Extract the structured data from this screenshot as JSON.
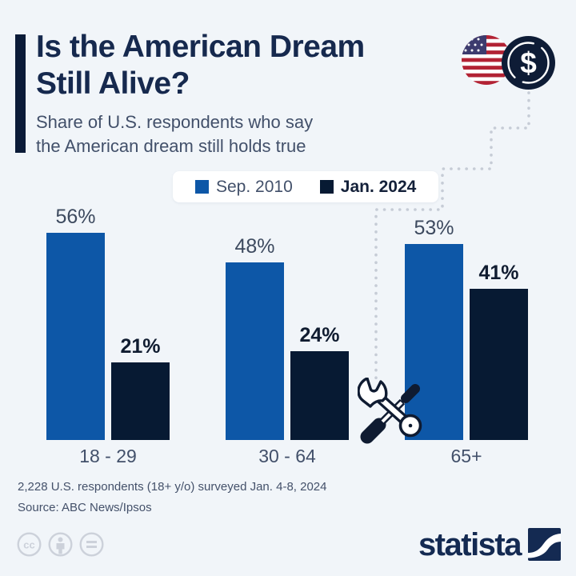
{
  "header": {
    "title_line1": "Is the American Dream",
    "title_line2": "Still Alive?",
    "subtitle_line1": "Share of U.S. respondents who say",
    "subtitle_line2": "the American dream still holds true",
    "coin_symbol": "$"
  },
  "chart_data": {
    "type": "bar",
    "categories": [
      "18 - 29",
      "30 - 64",
      "65+"
    ],
    "series": [
      {
        "name": "Sep. 2010",
        "color": "#0d57a7",
        "values": [
          56,
          48,
          53
        ]
      },
      {
        "name": "Jan. 2024",
        "color": "#071a33",
        "values": [
          21,
          24,
          41
        ]
      }
    ],
    "value_suffix": "%",
    "ylim": [
      0,
      60
    ],
    "grid": false,
    "legend_position": "top-center",
    "title": "Is the American Dream Still Alive?",
    "subtitle": "Share of U.S. respondents who say the American dream still holds true"
  },
  "footnote": {
    "line1": "2,228 U.S. respondents (18+ y/o) surveyed Jan. 4-8, 2024",
    "line2": "Source: ABC News/Ipsos"
  },
  "footer": {
    "brand": "statista"
  },
  "colors": {
    "background": "#f1f5f9",
    "series_2010_blue": "#0d57a7",
    "series_2024_navy": "#071a33",
    "title_navy": "#16294e",
    "text_gray": "#42506a",
    "dotted_line": "#c6ccd6",
    "flag_red": "#b22234",
    "flag_blue": "#3c3b6e",
    "license_gray": "#ccd1da"
  }
}
